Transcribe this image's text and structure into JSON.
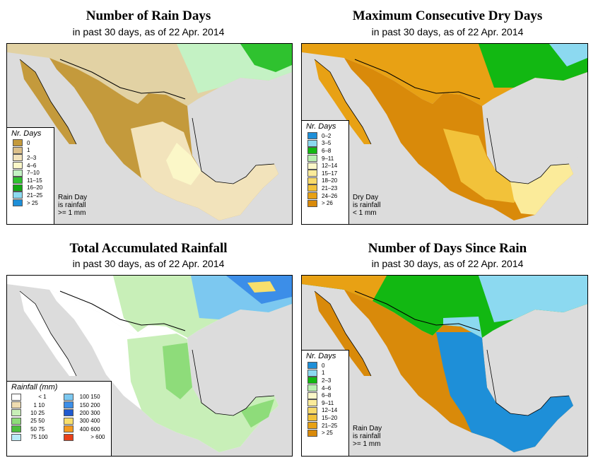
{
  "panels": [
    {
      "id": "rain-days",
      "title": "Number of Rain Days",
      "subtitle": "in past 30 days, as of  22 Apr. 2014",
      "legend_title": "Nr. Days",
      "legend_items": [
        {
          "label": "0",
          "color": "#c49a3c"
        },
        {
          "label": "1",
          "color": "#dcc08a"
        },
        {
          "label": "2–3",
          "color": "#f2e3bb"
        },
        {
          "label": "4–6",
          "color": "#fbf7c8"
        },
        {
          "label": "7–10",
          "color": "#c4f2c4"
        },
        {
          "label": "11–15",
          "color": "#2fc22f"
        },
        {
          "label": "16–20",
          "color": "#12a812"
        },
        {
          "label": "21–25",
          "color": "#8cd9f0"
        },
        {
          "label": "> 25",
          "color": "#1e8fd8"
        }
      ],
      "note": [
        "Rain Day",
        "is rainfall",
        ">= 1 mm"
      ]
    },
    {
      "id": "dry-days",
      "title": "Maximum Consecutive Dry Days",
      "subtitle": "in past 30 days, as of  22 Apr. 2014",
      "legend_title": "Nr. Days",
      "legend_items": [
        {
          "label": "0–2",
          "color": "#1e8fd8"
        },
        {
          "label": "3–5",
          "color": "#8cd9f0"
        },
        {
          "label": "6–8",
          "color": "#12b812"
        },
        {
          "label": "9–11",
          "color": "#b8f0b0"
        },
        {
          "label": "12–14",
          "color": "#fbf7c8"
        },
        {
          "label": "15–17",
          "color": "#fbeb9a"
        },
        {
          "label": "18–20",
          "color": "#f8da6a"
        },
        {
          "label": "21–23",
          "color": "#f2c23a"
        },
        {
          "label": "24–26",
          "color": "#e8a114"
        },
        {
          "label": "> 26",
          "color": "#d98a0a"
        }
      ],
      "note": [
        "Dry Day",
        "is rainfall",
        "< 1 mm"
      ]
    },
    {
      "id": "rainfall",
      "title": "Total Accumulated Rainfall",
      "subtitle": "in past 30 days, as of  22 Apr. 2014",
      "legend_title": "Rainfall (mm)",
      "legend_left": [
        {
          "lo": "",
          "hi": "< 1",
          "color": "#ffffff"
        },
        {
          "lo": "1",
          "hi": "10",
          "color": "#efdcb0"
        },
        {
          "lo": "10",
          "hi": "25",
          "color": "#c8efb8"
        },
        {
          "lo": "25",
          "hi": "50",
          "color": "#8edc7a"
        },
        {
          "lo": "50",
          "hi": "75",
          "color": "#4cbf3c"
        },
        {
          "lo": "75",
          "hi": "100",
          "color": "#b8ecf8"
        }
      ],
      "legend_right": [
        {
          "lo": "100",
          "hi": "150",
          "color": "#7cc8f0"
        },
        {
          "lo": "150",
          "hi": "200",
          "color": "#3c8ee8"
        },
        {
          "lo": "200",
          "hi": "300",
          "color": "#1f5ad0"
        },
        {
          "lo": "300",
          "hi": "400",
          "color": "#f8df6c"
        },
        {
          "lo": "400",
          "hi": "600",
          "color": "#f59a1e"
        },
        {
          "lo": "",
          "hi": "> 600",
          "color": "#e8401a"
        }
      ]
    },
    {
      "id": "days-since-rain",
      "title": "Number of Days Since Rain",
      "subtitle": "in past 30 days, as of  22 Apr. 2014",
      "legend_title": "Nr. Days",
      "legend_items": [
        {
          "label": "0",
          "color": "#1e8fd8"
        },
        {
          "label": "1",
          "color": "#8cd9f0"
        },
        {
          "label": "2–3",
          "color": "#12b812"
        },
        {
          "label": "4–6",
          "color": "#b8f0b0"
        },
        {
          "label": "6–8",
          "color": "#fbf7c8"
        },
        {
          "label": "9–11",
          "color": "#fbeb9a"
        },
        {
          "label": "12–14",
          "color": "#f8da6a"
        },
        {
          "label": "15–20",
          "color": "#f2c23a"
        },
        {
          "label": "21–25",
          "color": "#e8a114"
        },
        {
          "label": "> 25",
          "color": "#d98a0a"
        }
      ],
      "note": [
        "Rain Day",
        "is rainfall",
        ">= 1 mm"
      ]
    }
  ],
  "colors": {
    "ocean": "#dcdcdc",
    "border": "#000000"
  }
}
